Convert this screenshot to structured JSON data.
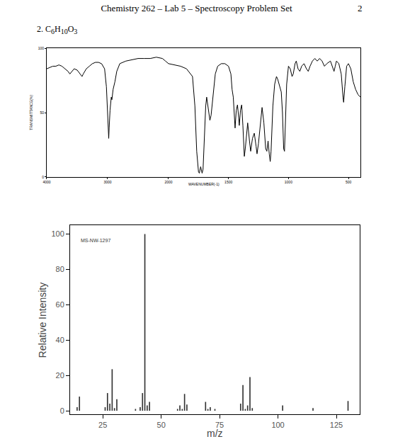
{
  "header": {
    "title": "Chemistry 262 – Lab 5 – Spectroscopy Problem Set",
    "page": "2",
    "problem": "2. C6H10O3"
  },
  "chart_data": [
    {
      "type": "line",
      "y_label": "TRANSMITTANCE(%)",
      "color": "#000000",
      "x": [
        4000,
        3950,
        3900,
        3850,
        3800,
        3750,
        3700,
        3650,
        3620,
        3600,
        3550,
        3500,
        3450,
        3420,
        3400,
        3350,
        3300,
        3250,
        3200,
        3150,
        3100,
        3050,
        3020,
        3000,
        2990,
        2982,
        2975,
        2960,
        2940,
        2930,
        2910,
        2880,
        2850,
        2800,
        2700,
        2600,
        2500,
        2400,
        2300,
        2200,
        2100,
        2050,
        2000
      ],
      "values": [
        84,
        85,
        86,
        86,
        87,
        86,
        84,
        82,
        80,
        81,
        84,
        83,
        80,
        78,
        80,
        84,
        86,
        88,
        89,
        89,
        88,
        84,
        70,
        50,
        35,
        30,
        38,
        52,
        62,
        60,
        68,
        74,
        82,
        88,
        90,
        91,
        92,
        92,
        92,
        93,
        92,
        90,
        88
      ],
      "xlim": [
        4000,
        2000
      ],
      "xticks": [
        4000,
        3000
      ],
      "ylim": [
        0,
        100
      ],
      "yticks": [
        0,
        50,
        100
      ]
    },
    {
      "type": "line",
      "x_label": "WAVENUMBER(-1)",
      "color": "#000000",
      "tick_labels": "x",
      "x": [
        2000,
        1950,
        1900,
        1850,
        1800,
        1780,
        1765,
        1750,
        1743,
        1732,
        1720,
        1712,
        1700,
        1690,
        1682,
        1670,
        1655,
        1645,
        1630,
        1610,
        1590,
        1560,
        1530,
        1500,
        1480,
        1470,
        1460,
        1450,
        1445,
        1435,
        1425,
        1415,
        1410,
        1400,
        1390,
        1380,
        1368,
        1360,
        1340,
        1325,
        1315,
        1300,
        1285,
        1270,
        1262,
        1250,
        1235,
        1220,
        1205,
        1190,
        1180,
        1170,
        1160,
        1152,
        1145,
        1130,
        1115,
        1100,
        1090,
        1070,
        1060,
        1050,
        1040,
        1033,
        1025,
        1015,
        1000,
        985,
        970,
        960,
        945,
        935,
        920,
        905,
        890,
        870,
        850,
        835,
        820,
        800,
        780,
        760,
        740,
        720,
        700,
        680,
        650,
        635,
        620,
        610,
        600,
        580,
        560,
        545,
        540,
        530,
        515,
        500,
        480,
        460,
        440,
        420,
        400
      ],
      "values": [
        88,
        87,
        86,
        84,
        78,
        55,
        20,
        4,
        3,
        8,
        3,
        6,
        30,
        55,
        62,
        55,
        44,
        48,
        62,
        80,
        86,
        88,
        88,
        86,
        80,
        68,
        62,
        48,
        38,
        52,
        56,
        46,
        40,
        52,
        56,
        40,
        16,
        22,
        42,
        28,
        20,
        30,
        34,
        24,
        18,
        26,
        42,
        54,
        42,
        22,
        20,
        28,
        18,
        12,
        20,
        55,
        72,
        78,
        76,
        70,
        66,
        50,
        22,
        20,
        45,
        72,
        86,
        84,
        78,
        80,
        88,
        90,
        84,
        82,
        86,
        88,
        84,
        82,
        86,
        90,
        92,
        90,
        92,
        90,
        86,
        88,
        90,
        86,
        82,
        86,
        90,
        88,
        80,
        62,
        58,
        70,
        86,
        88,
        84,
        74,
        68,
        64,
        62
      ],
      "xlim": [
        2000,
        400
      ],
      "xticks": [
        2000,
        1500,
        1000,
        500
      ],
      "ylim": [
        0,
        100
      ]
    },
    {
      "type": "bar",
      "x_label": "m/z",
      "y_label": "Relative Intensity",
      "annotations": [
        "MS-NW-1297"
      ],
      "color": "#333333",
      "x": [
        14,
        15,
        26,
        27,
        28,
        29,
        30,
        31,
        39,
        41,
        42,
        43,
        44,
        45,
        57,
        58,
        59,
        60,
        61,
        69,
        70,
        71,
        73,
        84,
        85,
        86,
        87,
        88,
        89,
        102,
        115,
        130
      ],
      "values": [
        2,
        8,
        2,
        10,
        4,
        23.5,
        1.5,
        6.5,
        1,
        2,
        10,
        100,
        3,
        5,
        1,
        3,
        1,
        9.5,
        3.5,
        5,
        1,
        2,
        1,
        4,
        14.5,
        1,
        3,
        19,
        1.5,
        3,
        1.5,
        5.5
      ],
      "xlim": [
        11,
        135
      ],
      "xticks": [
        25,
        50,
        75,
        100,
        125
      ],
      "ylim": [
        -2,
        105
      ],
      "yticks": [
        0,
        20,
        40,
        60,
        80,
        100
      ]
    }
  ]
}
